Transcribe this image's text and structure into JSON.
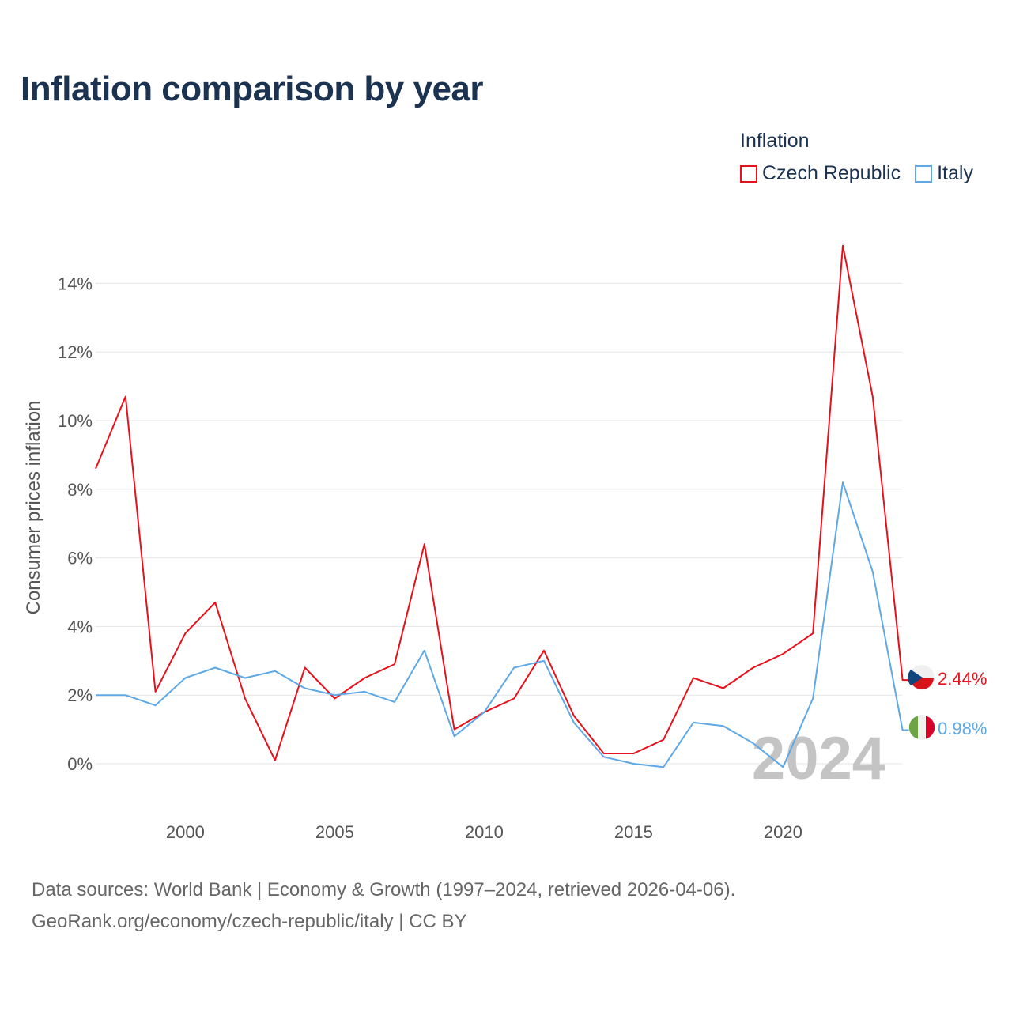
{
  "title": "Inflation comparison by year",
  "legend": {
    "title": "Inflation",
    "items": [
      {
        "label": "Czech Republic",
        "color": "#e8101a"
      },
      {
        "label": "Italy",
        "color": "#5ea8e6"
      }
    ]
  },
  "footer": {
    "line1": "Data sources: World Bank | Economy & Growth (1997–2024, retrieved 2026-04-06).",
    "line2": "GeoRank.org/economy/czech-republic/italy | CC BY"
  },
  "chart_data": {
    "type": "line",
    "title": "Inflation comparison by year",
    "xlabel": "",
    "ylabel": "Consumer prices inflation",
    "x": [
      1997,
      1998,
      1999,
      2000,
      2001,
      2002,
      2003,
      2004,
      2005,
      2006,
      2007,
      2008,
      2009,
      2010,
      2011,
      2012,
      2013,
      2014,
      2015,
      2016,
      2017,
      2018,
      2019,
      2020,
      2021,
      2022,
      2023,
      2024
    ],
    "x_ticks": [
      "2000",
      "2005",
      "2010",
      "2015",
      "2020"
    ],
    "y_ticks": [
      "0%",
      "2%",
      "4%",
      "6%",
      "8%",
      "10%",
      "12%",
      "14%"
    ],
    "ylim": [
      -1.5,
      15.5
    ],
    "grid": true,
    "watermark_year": "2024",
    "series": [
      {
        "name": "Czech Republic",
        "color": "#e8101a",
        "values": [
          8.6,
          10.7,
          2.1,
          3.8,
          4.7,
          1.9,
          0.1,
          2.8,
          1.9,
          2.5,
          2.9,
          6.4,
          1.0,
          1.5,
          1.9,
          3.3,
          1.4,
          0.3,
          0.3,
          0.7,
          2.5,
          2.2,
          2.8,
          3.2,
          3.8,
          15.1,
          10.7,
          2.44
        ],
        "end_label": "2.44%"
      },
      {
        "name": "Italy",
        "color": "#5ea8e6",
        "values": [
          2.0,
          2.0,
          1.7,
          2.5,
          2.8,
          2.5,
          2.7,
          2.2,
          2.0,
          2.1,
          1.8,
          3.3,
          0.8,
          1.5,
          2.8,
          3.0,
          1.2,
          0.2,
          0.0,
          -0.1,
          1.2,
          1.1,
          0.6,
          -0.1,
          1.9,
          8.2,
          5.6,
          0.98
        ],
        "end_label": "0.98%"
      }
    ]
  }
}
